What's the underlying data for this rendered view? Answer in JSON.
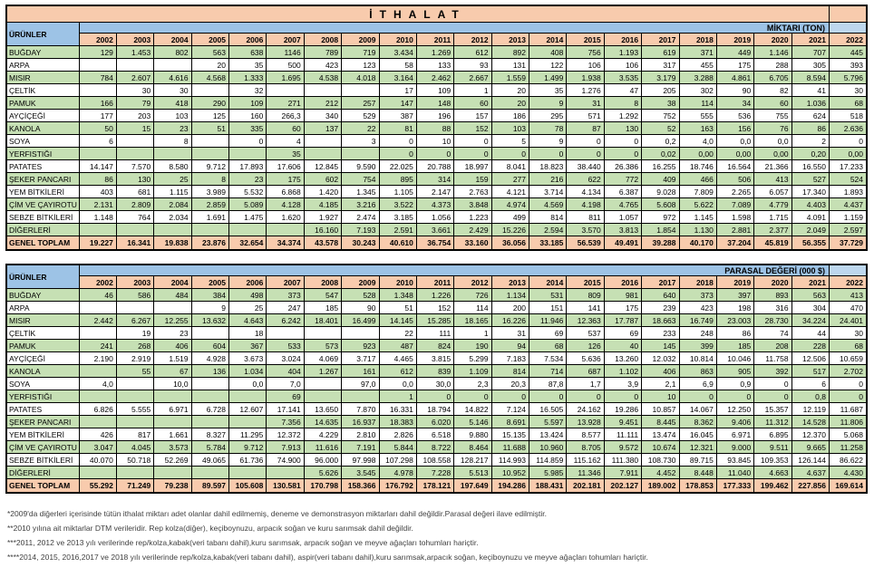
{
  "title": "İTHALAT",
  "products_header": "ÜRÜNLER",
  "years": [
    "2002",
    "2003",
    "2004",
    "2005",
    "2006",
    "2007",
    "2008",
    "2009",
    "2010",
    "2011",
    "2012",
    "2013",
    "2014",
    "2015",
    "2016",
    "2017",
    "2018",
    "2019",
    "2020",
    "2021",
    "2022"
  ],
  "quantity_table": {
    "section_label": "MİKTARI (TON)",
    "rows": [
      {
        "label": "BUĞDAY",
        "values": [
          "129",
          "1.453",
          "802",
          "563",
          "638",
          "1146",
          "789",
          "719",
          "3.434",
          "1.269",
          "612",
          "892",
          "408",
          "756",
          "1.193",
          "619",
          "371",
          "449",
          "1.146",
          "707",
          "445"
        ]
      },
      {
        "label": "ARPA",
        "values": [
          "",
          "",
          "",
          "20",
          "35",
          "500",
          "423",
          "123",
          "58",
          "133",
          "93",
          "131",
          "122",
          "106",
          "106",
          "317",
          "455",
          "175",
          "288",
          "305",
          "393"
        ]
      },
      {
        "label": "MISIR",
        "values": [
          "784",
          "2.607",
          "4.616",
          "4.568",
          "1.333",
          "1.695",
          "4.538",
          "4.018",
          "3.164",
          "2.462",
          "2.667",
          "1.559",
          "1.499",
          "1.938",
          "3.535",
          "3.179",
          "3.288",
          "4.861",
          "6.705",
          "8.594",
          "5.796"
        ]
      },
      {
        "label": "ÇELTİK",
        "values": [
          "",
          "30",
          "30",
          "",
          "32",
          "",
          "",
          "",
          "17",
          "109",
          "1",
          "20",
          "35",
          "1.276",
          "47",
          "205",
          "302",
          "90",
          "82",
          "41",
          "30"
        ]
      },
      {
        "label": "PAMUK",
        "values": [
          "166",
          "79",
          "418",
          "290",
          "109",
          "271",
          "212",
          "257",
          "147",
          "148",
          "60",
          "20",
          "9",
          "31",
          "8",
          "38",
          "114",
          "34",
          "60",
          "1.036",
          "68"
        ]
      },
      {
        "label": "AYÇİÇEĞİ",
        "values": [
          "177",
          "203",
          "103",
          "125",
          "160",
          "266,3",
          "340",
          "529",
          "387",
          "196",
          "157",
          "186",
          "295",
          "571",
          "1.292",
          "752",
          "555",
          "536",
          "755",
          "624",
          "518"
        ]
      },
      {
        "label": "KANOLA",
        "values": [
          "50",
          "15",
          "23",
          "51",
          "335",
          "60",
          "137",
          "22",
          "81",
          "88",
          "152",
          "103",
          "78",
          "87",
          "130",
          "52",
          "163",
          "156",
          "76",
          "86",
          "2.636"
        ]
      },
      {
        "label": "SOYA",
        "values": [
          "6",
          "",
          "8",
          "",
          "0",
          "4",
          "",
          "3",
          "0",
          "10",
          "0",
          "5",
          "9",
          "0",
          "0",
          "0,2",
          "4,0",
          "0,0",
          "0,0",
          "2",
          "0"
        ]
      },
      {
        "label": "YERFISTIĞI",
        "values": [
          "",
          "",
          "",
          "",
          "",
          "35",
          "",
          "",
          "0",
          "0",
          "0",
          "0",
          "0",
          "0",
          "0",
          "0,02",
          "0,00",
          "0,00",
          "0,00",
          "0,20",
          "0,00"
        ]
      },
      {
        "label": "PATATES",
        "values": [
          "14.147",
          "7.570",
          "8.580",
          "9.712",
          "17.893",
          "17.606",
          "12.845",
          "9.590",
          "22.025",
          "20.788",
          "18.997",
          "8.041",
          "18.823",
          "38.440",
          "26.386",
          "16.255",
          "18.746",
          "16.564",
          "21.366",
          "16.550",
          "17.233"
        ]
      },
      {
        "label": "ŞEKER PANCARI",
        "values": [
          "86",
          "130",
          "25",
          "8",
          "23",
          "175",
          "602",
          "754",
          "895",
          "314",
          "159",
          "277",
          "216",
          "622",
          "772",
          "409",
          "466",
          "506",
          "413",
          "527",
          "524"
        ]
      },
      {
        "label": "YEM BİTKİLERİ",
        "values": [
          "403",
          "681",
          "1.115",
          "3.989",
          "5.532",
          "6.868",
          "1.420",
          "1.345",
          "1.105",
          "2.147",
          "2.763",
          "4.121",
          "3.714",
          "4.134",
          "6.387",
          "9.028",
          "7.809",
          "2.265",
          "6.057",
          "17.340",
          "1.893"
        ]
      },
      {
        "label": "ÇİM VE ÇAYIROTU",
        "values": [
          "2.131",
          "2.809",
          "2.084",
          "2.859",
          "5.089",
          "4.128",
          "4.185",
          "3.216",
          "3.522",
          "4.373",
          "3.848",
          "4.974",
          "4.569",
          "4.198",
          "4.765",
          "5.608",
          "5.622",
          "7.089",
          "4.779",
          "4.403",
          "4.437"
        ]
      },
      {
        "label": "SEBZE BİTKİLERİ",
        "values": [
          "1.148",
          "764",
          "2.034",
          "1.691",
          "1.475",
          "1.620",
          "1.927",
          "2.474",
          "3.185",
          "1.056",
          "1.223",
          "499",
          "814",
          "811",
          "1.057",
          "972",
          "1.145",
          "1.598",
          "1.715",
          "4.091",
          "1.159"
        ]
      },
      {
        "label": "DİĞERLERİ",
        "values": [
          "",
          "",
          "",
          "",
          "",
          "",
          "16.160",
          "7.193",
          "2.591",
          "3.661",
          "2.429",
          "15.226",
          "2.594",
          "3.570",
          "3.813",
          "1.854",
          "1.130",
          "2.881",
          "2.377",
          "2.049",
          "2.597"
        ]
      }
    ],
    "total": {
      "label": "GENEL TOPLAM",
      "values": [
        "19.227",
        "16.341",
        "19.838",
        "23.876",
        "32.654",
        "34.374",
        "43.578",
        "30.243",
        "40.610",
        "36.754",
        "33.160",
        "36.056",
        "33.185",
        "56.539",
        "49.491",
        "39.288",
        "40.170",
        "37.204",
        "45.819",
        "56.355",
        "37.729"
      ]
    }
  },
  "value_table": {
    "section_label": "PARASAL DEĞERİ (000 $)",
    "rows": [
      {
        "label": "BUĞDAY",
        "values": [
          "46",
          "586",
          "484",
          "384",
          "498",
          "373",
          "547",
          "528",
          "1.348",
          "1.226",
          "726",
          "1.134",
          "531",
          "809",
          "981",
          "640",
          "373",
          "397",
          "893",
          "563",
          "413"
        ]
      },
      {
        "label": "ARPA",
        "values": [
          "",
          "",
          "",
          "9",
          "25",
          "247",
          "185",
          "90",
          "51",
          "152",
          "114",
          "200",
          "151",
          "141",
          "175",
          "239",
          "423",
          "198",
          "316",
          "304",
          "470"
        ]
      },
      {
        "label": "MISIR",
        "values": [
          "2.442",
          "6.267",
          "12.255",
          "13.632",
          "4.643",
          "6.242",
          "18.401",
          "16.499",
          "14.145",
          "15.285",
          "18.165",
          "16.226",
          "11.946",
          "12.363",
          "17.787",
          "18.663",
          "16.749",
          "23.003",
          "28.730",
          "34.224",
          "24.401"
        ]
      },
      {
        "label": "ÇELTİK",
        "values": [
          "",
          "19",
          "23",
          "",
          "18",
          "",
          "",
          "",
          "22",
          "111",
          "1",
          "31",
          "69",
          "537",
          "69",
          "233",
          "248",
          "86",
          "74",
          "44",
          "30"
        ]
      },
      {
        "label": "PAMUK",
        "values": [
          "241",
          "268",
          "406",
          "604",
          "367",
          "533",
          "573",
          "923",
          "487",
          "824",
          "190",
          "94",
          "68",
          "126",
          "40",
          "145",
          "399",
          "185",
          "208",
          "228",
          "68"
        ]
      },
      {
        "label": "AYÇİÇEĞİ",
        "values": [
          "2.190",
          "2.919",
          "1.519",
          "4.928",
          "3.673",
          "3.024",
          "4.069",
          "3.717",
          "4.465",
          "3.815",
          "5.299",
          "7.183",
          "7.534",
          "5.636",
          "13.260",
          "12.032",
          "10.814",
          "10.046",
          "11.758",
          "12.506",
          "10.659"
        ]
      },
      {
        "label": "KANOLA",
        "values": [
          "",
          "55",
          "67",
          "136",
          "1.034",
          "404",
          "1.267",
          "161",
          "612",
          "839",
          "1.109",
          "814",
          "714",
          "687",
          "1.102",
          "406",
          "863",
          "905",
          "392",
          "517",
          "2.702"
        ]
      },
      {
        "label": "SOYA",
        "values": [
          "4,0",
          "",
          "10,0",
          "",
          "0,0",
          "7,0",
          "",
          "97,0",
          "0,0",
          "30,0",
          "2,3",
          "20,3",
          "87,8",
          "1,7",
          "3,9",
          "2,1",
          "6,9",
          "0,9",
          "0",
          "6",
          "0"
        ]
      },
      {
        "label": "YERFISTIĞI",
        "values": [
          "",
          "",
          "",
          "",
          "",
          "69",
          "",
          "",
          "1",
          "0",
          "0",
          "0",
          "0",
          "0",
          "0",
          "10",
          "0",
          "0",
          "0",
          "0,8",
          "0"
        ]
      },
      {
        "label": "PATATES",
        "values": [
          "6.826",
          "5.555",
          "6.971",
          "6.728",
          "12.607",
          "17.141",
          "13.650",
          "7.870",
          "16.331",
          "18.794",
          "14.822",
          "7.124",
          "16.505",
          "24.162",
          "19.286",
          "10.857",
          "14.067",
          "12.250",
          "15.357",
          "12.119",
          "11.687"
        ]
      },
      {
        "label": "ŞEKER PANCARI",
        "values": [
          "",
          "",
          "",
          "",
          "",
          "7.356",
          "14.635",
          "16.937",
          "18.383",
          "6.020",
          "5.146",
          "8.691",
          "5.597",
          "13.928",
          "9.451",
          "8.445",
          "8.362",
          "9.406",
          "11.312",
          "14.528",
          "11.806"
        ]
      },
      {
        "label": "YEM BİTKİLERİ",
        "values": [
          "426",
          "817",
          "1.661",
          "8.327",
          "11.295",
          "12.372",
          "4.229",
          "2.810",
          "2.826",
          "6.518",
          "9.880",
          "15.135",
          "13.424",
          "8.577",
          "11.111",
          "13.474",
          "16.045",
          "6.971",
          "6.895",
          "12.370",
          "5.068"
        ]
      },
      {
        "label": "ÇİM VE ÇAYIROTU",
        "values": [
          "3.047",
          "4.045",
          "3.573",
          "5.784",
          "9.712",
          "7.913",
          "11.616",
          "7.191",
          "5.844",
          "8.722",
          "8.464",
          "11.688",
          "10.960",
          "8.705",
          "9.572",
          "10.674",
          "12.321",
          "9.000",
          "9.511",
          "9.665",
          "11.258"
        ]
      },
      {
        "label": "SEBZE BİTKİLERİ",
        "values": [
          "40.070",
          "50.718",
          "52.269",
          "49.065",
          "61.736",
          "74.900",
          "96.000",
          "97.998",
          "107.298",
          "108.558",
          "128.217",
          "114.993",
          "114.859",
          "115.162",
          "111.380",
          "108.730",
          "89.715",
          "93.845",
          "109.353",
          "126.144",
          "86.622"
        ]
      },
      {
        "label": "DİĞERLERİ",
        "values": [
          "",
          "",
          "",
          "",
          "",
          "",
          "5.626",
          "3.545",
          "4.978",
          "7.228",
          "5.513",
          "10.952",
          "5.985",
          "11.346",
          "7.911",
          "4.452",
          "8.448",
          "11.040",
          "4.663",
          "4.637",
          "4.430"
        ]
      }
    ],
    "total": {
      "label": "GENEL TOPLAM",
      "values": [
        "55.292",
        "71.249",
        "79.238",
        "89.597",
        "105.608",
        "130.581",
        "170.798",
        "158.366",
        "176.792",
        "178.121",
        "197.649",
        "194.286",
        "188.431",
        "202.181",
        "202.127",
        "189.002",
        "178.853",
        "177.333",
        "199.462",
        "227.856",
        "169.614"
      ]
    }
  },
  "footnotes": [
    "*2009'da diğerleri içerisinde tütün  ithalat miktarı adet olanlar dahil edilmemiş, deneme ve demonstrasyon miktarları dahil değildir.Parasal değeri ilave edilmiştir.",
    "**2010 yılına ait miktarlar DTM verileridir. Rep kolza(diğer), keçiboynuzu, arpacık soğan ve kuru sarımsak dahil değildir.",
    "***2011, 2012 ve 2013 yılı verilerinde rep/kolza,kabak(veri tabanı dahil),kuru sarımsak, arpacık soğan ve meyve ağaçları tohumları hariçtir.",
    "****2014, 2015, 2016,2017 ve 2018 yılı verilerinde rep/kolza,kabak(veri tabanı dahil), aspir(veri tabanı dahil),kuru sarımsak,arpacık soğan, keçiboynuzu ve meyve ağaçları tohumları hariçtir."
  ],
  "colors": {
    "header_peach": "#F8CBAD",
    "header_blue": "#9DC3E6",
    "corner_light_blue": "#BDD7EE",
    "row_green": "#C6E0B4",
    "row_white": "#FFFFFF",
    "border": "#000000",
    "footnote_text": "#404040"
  }
}
